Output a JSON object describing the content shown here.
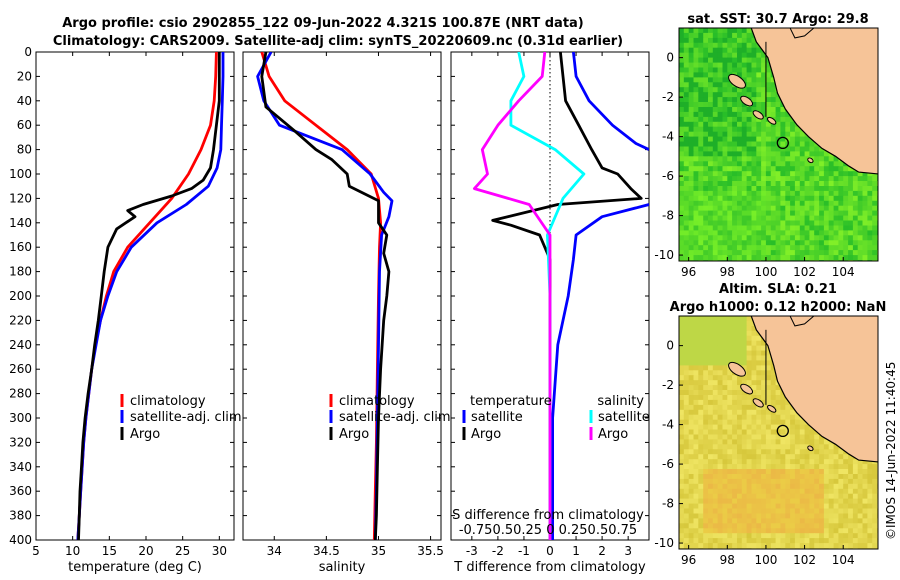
{
  "header": {
    "title_line1": "Argo profile: csio 2902855_122 09-Jun-2022 4.321S 100.87E (NRT data)",
    "title_line2": "Climatology: CARS2009. Satellite-adj clim: synTS_20220609.nc (0.31d earlier)"
  },
  "colors": {
    "climatology": "#ff0000",
    "satellite": "#0000ff",
    "argo": "#000000",
    "sal_satellite": "#00ffff",
    "sal_argo": "#ff00ff",
    "land": "#f6c498"
  },
  "chart_data": [
    {
      "type": "line",
      "id": "temperature",
      "xlabel": "temperature (deg C)",
      "xlim": [
        5,
        32
      ],
      "xticks": [
        5,
        10,
        15,
        20,
        25,
        30
      ],
      "ylim": [
        0,
        400
      ],
      "yticks": [
        0,
        20,
        40,
        60,
        80,
        100,
        120,
        140,
        160,
        180,
        200,
        220,
        240,
        260,
        280,
        300,
        320,
        340,
        360,
        380,
        400
      ],
      "legend": [
        "climatology",
        "satellite-adj. clim",
        "Argo"
      ],
      "series": [
        {
          "name": "climatology",
          "color": "#ff0000",
          "points": [
            [
              29.6,
              0
            ],
            [
              29.5,
              20
            ],
            [
              29.3,
              40
            ],
            [
              28.8,
              60
            ],
            [
              27.5,
              80
            ],
            [
              25.8,
              100
            ],
            [
              23.5,
              120
            ],
            [
              20.5,
              140
            ],
            [
              17.5,
              160
            ],
            [
              15.6,
              180
            ],
            [
              14.6,
              200
            ],
            [
              13.8,
              220
            ],
            [
              13.1,
              240
            ],
            [
              12.6,
              260
            ],
            [
              12.2,
              280
            ],
            [
              11.8,
              300
            ],
            [
              11.5,
              320
            ],
            [
              11.3,
              340
            ],
            [
              11.1,
              360
            ],
            [
              10.9,
              380
            ],
            [
              10.7,
              400
            ]
          ]
        },
        {
          "name": "satellite-adj. clim",
          "color": "#0000ff",
          "points": [
            [
              30.5,
              0
            ],
            [
              30.5,
              20
            ],
            [
              30.4,
              40
            ],
            [
              30.3,
              60
            ],
            [
              30.2,
              80
            ],
            [
              29.7,
              95
            ],
            [
              28.5,
              110
            ],
            [
              25.5,
              125
            ],
            [
              21.5,
              140
            ],
            [
              18.0,
              160
            ],
            [
              16.0,
              180
            ],
            [
              14.8,
              200
            ],
            [
              13.8,
              220
            ],
            [
              13.2,
              240
            ],
            [
              12.6,
              260
            ],
            [
              12.2,
              280
            ],
            [
              11.8,
              300
            ],
            [
              11.5,
              320
            ],
            [
              11.3,
              340
            ],
            [
              11.1,
              360
            ],
            [
              10.9,
              380
            ],
            [
              10.7,
              400
            ]
          ]
        },
        {
          "name": "Argo",
          "color": "#000000",
          "points": [
            [
              30.0,
              0
            ],
            [
              30.0,
              20
            ],
            [
              30.0,
              40
            ],
            [
              29.6,
              60
            ],
            [
              29.2,
              80
            ],
            [
              28.8,
              95
            ],
            [
              27.8,
              105
            ],
            [
              26.2,
              112
            ],
            [
              23.5,
              118
            ],
            [
              19.6,
              125
            ],
            [
              17.5,
              130
            ],
            [
              18.5,
              135
            ],
            [
              16.0,
              145
            ],
            [
              14.8,
              160
            ],
            [
              14.3,
              180
            ],
            [
              13.9,
              200
            ],
            [
              13.5,
              220
            ],
            [
              13.0,
              240
            ],
            [
              12.6,
              260
            ],
            [
              12.1,
              280
            ],
            [
              11.7,
              300
            ],
            [
              11.4,
              320
            ],
            [
              11.2,
              340
            ],
            [
              11.0,
              360
            ],
            [
              10.9,
              380
            ],
            [
              10.8,
              400
            ]
          ]
        }
      ]
    },
    {
      "type": "line",
      "id": "salinity",
      "xlabel": "salinity",
      "xlim": [
        33.7,
        35.6
      ],
      "xticks": [
        34,
        34.5,
        35,
        35.5
      ],
      "ylim": [
        0,
        400
      ],
      "legend": [
        "climatology",
        "satellite-adj. clim",
        "Argo"
      ],
      "series": [
        {
          "name": "climatology",
          "color": "#ff0000",
          "points": [
            [
              33.88,
              0
            ],
            [
              33.95,
              20
            ],
            [
              34.1,
              40
            ],
            [
              34.4,
              60
            ],
            [
              34.7,
              80
            ],
            [
              34.93,
              100
            ],
            [
              35.0,
              120
            ],
            [
              35.02,
              140
            ],
            [
              35.01,
              160
            ],
            [
              35.0,
              200
            ],
            [
              34.99,
              260
            ],
            [
              34.98,
              320
            ],
            [
              34.97,
              360
            ],
            [
              34.96,
              400
            ]
          ]
        },
        {
          "name": "satellite-adj. clim",
          "color": "#0000ff",
          "points": [
            [
              33.97,
              0
            ],
            [
              33.84,
              20
            ],
            [
              33.9,
              40
            ],
            [
              34.05,
              60
            ],
            [
              34.65,
              80
            ],
            [
              34.92,
              100
            ],
            [
              35.05,
              115
            ],
            [
              35.13,
              122
            ],
            [
              35.1,
              135
            ],
            [
              35.03,
              150
            ],
            [
              35.01,
              180
            ],
            [
              35.0,
              240
            ],
            [
              34.99,
              300
            ],
            [
              34.98,
              360
            ],
            [
              34.97,
              400
            ]
          ]
        },
        {
          "name": "Argo",
          "color": "#000000",
          "points": [
            [
              33.92,
              0
            ],
            [
              33.88,
              20
            ],
            [
              33.92,
              45
            ],
            [
              34.2,
              65
            ],
            [
              34.4,
              80
            ],
            [
              34.55,
              88
            ],
            [
              34.7,
              100
            ],
            [
              34.72,
              110
            ],
            [
              35.0,
              122
            ],
            [
              35.0,
              140
            ],
            [
              35.08,
              150
            ],
            [
              35.05,
              165
            ],
            [
              35.1,
              180
            ],
            [
              35.08,
              200
            ],
            [
              35.05,
              220
            ],
            [
              35.02,
              260
            ],
            [
              35.0,
              300
            ],
            [
              34.99,
              340
            ],
            [
              34.98,
              380
            ],
            [
              34.97,
              400
            ]
          ]
        }
      ]
    },
    {
      "type": "line",
      "id": "difference",
      "xlabel": "T difference from climatology",
      "xlim": [
        -3.8,
        3.8
      ],
      "xticks": [
        -3,
        -2,
        -1,
        0,
        1,
        2,
        3
      ],
      "top_label": "S difference from climatology",
      "top_ticks": [
        "-0.75",
        "0.5",
        "0.25",
        "0",
        "0.25",
        "0.5",
        "0.75"
      ],
      "top_ticks_line": "-0.750.50.25 0  0.250.50.75",
      "ylim": [
        0,
        400
      ],
      "legend_left_title": "temperature",
      "legend_right_title": "salinity",
      "legend": [
        "satellite",
        "Argo",
        "satellite",
        "Argo"
      ],
      "series": [
        {
          "name": "T satellite",
          "color": "#0000ff",
          "points": [
            [
              0.9,
              0
            ],
            [
              1.0,
              20
            ],
            [
              1.5,
              40
            ],
            [
              2.4,
              60
            ],
            [
              3.3,
              75
            ],
            [
              3.8,
              80
            ]
          ]
        },
        {
          "name": "T satellite deep",
          "color": "#0000ff",
          "points": [
            [
              3.8,
              125
            ],
            [
              2.0,
              135
            ],
            [
              1.0,
              150
            ],
            [
              0.9,
              170
            ],
            [
              0.7,
              200
            ],
            [
              0.3,
              240
            ],
            [
              0.1,
              300
            ],
            [
              0.1,
              400
            ]
          ]
        },
        {
          "name": "T Argo",
          "color": "#000000",
          "points": [
            [
              0.4,
              0
            ],
            [
              0.5,
              20
            ],
            [
              0.6,
              40
            ],
            [
              1.1,
              60
            ],
            [
              1.6,
              80
            ],
            [
              2.0,
              95
            ],
            [
              2.6,
              100
            ],
            [
              3.1,
              112
            ],
            [
              3.5,
              120
            ],
            [
              0.3,
              125
            ],
            [
              -2.2,
              138
            ],
            [
              -1.5,
              142
            ],
            [
              -0.4,
              150
            ],
            [
              0.0,
              170
            ],
            [
              0.0,
              200
            ],
            [
              0.0,
              400
            ]
          ]
        },
        {
          "name": "S satellite",
          "color": "#00ffff",
          "points": [
            [
              -1.2,
              0
            ],
            [
              -1.0,
              20
            ],
            [
              -1.5,
              40
            ],
            [
              -1.5,
              60
            ],
            [
              0.2,
              80
            ],
            [
              1.3,
              100
            ],
            [
              0.5,
              120
            ],
            [
              -0.1,
              150
            ],
            [
              0.0,
              200
            ],
            [
              0.0,
              400
            ]
          ]
        },
        {
          "name": "S Argo",
          "color": "#ff00ff",
          "points": [
            [
              -0.2,
              0
            ],
            [
              -0.3,
              20
            ],
            [
              -1.2,
              40
            ],
            [
              -2.0,
              60
            ],
            [
              -2.6,
              80
            ],
            [
              -2.4,
              100
            ],
            [
              -2.9,
              112
            ],
            [
              -0.8,
              125
            ],
            [
              0.0,
              150
            ],
            [
              0.0,
              200
            ],
            [
              0.0,
              400
            ]
          ]
        }
      ]
    },
    {
      "type": "heatmap",
      "id": "sst_map",
      "title": "sat. SST: 30.7 Argo: 29.8",
      "xticks": [
        96,
        98,
        100,
        102,
        104
      ],
      "yticks": [
        0,
        -2,
        -4,
        -6,
        -8,
        -10
      ],
      "xlim": [
        95.5,
        105.8
      ],
      "ylim": [
        -10.3,
        1.5
      ],
      "argo_marker": [
        100.87,
        -4.321
      ]
    },
    {
      "type": "heatmap",
      "id": "sla_map",
      "title_line1": "Altim. SLA: 0.21",
      "title_line2": "Argo h1000: 0.12 h2000: NaN",
      "xticks": [
        96,
        98,
        100,
        102,
        104
      ],
      "yticks": [
        0,
        -2,
        -4,
        -6,
        -8,
        -10
      ],
      "xlim": [
        95.5,
        105.8
      ],
      "ylim": [
        -10.3,
        1.5
      ],
      "argo_marker": [
        100.87,
        -4.321
      ]
    }
  ],
  "credit": "©IMOS 14-Jun-2022 11:40:45"
}
